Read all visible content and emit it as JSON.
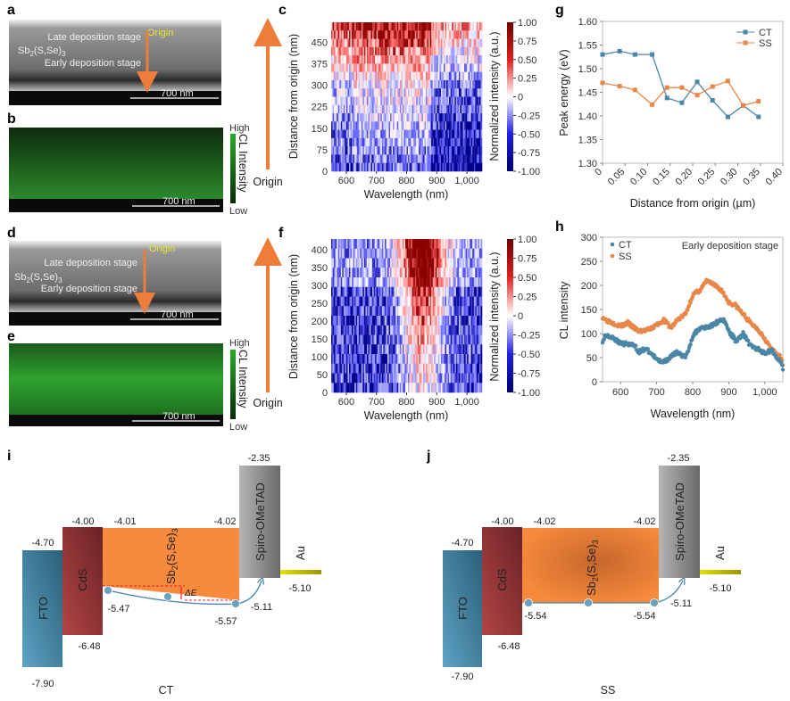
{
  "panels": {
    "a": {
      "label": "a",
      "late": "Late deposition stage",
      "mat": [
        "Sb",
        "2",
        "(S,Se)",
        "3"
      ],
      "early": "Early deposition stage",
      "origin": "Origin",
      "scale": "700 nm"
    },
    "b": {
      "label": "b",
      "scale": "700 nm",
      "high": "High",
      "low": "Low",
      "cbar_title": "CL Intensity"
    },
    "c": {
      "label": "c",
      "ylabel": "Distance from origin (nm)",
      "xlabel": "Wavelength (nm)",
      "origin": "Origin",
      "cbar_title": "Normalized intensity (a.u.)",
      "xticks": [
        "600",
        "700",
        "800",
        "900",
        "1,000"
      ],
      "yticks": [
        "0",
        "75",
        "150",
        "225",
        "300",
        "375",
        "450"
      ],
      "cbar_ticks": [
        "1.00",
        "0.75",
        "0.50",
        "0.25",
        "0",
        "-0.25",
        "-0.50",
        "-0.75",
        "-1.00"
      ]
    },
    "d": {
      "label": "d",
      "late": "Late deposition stage",
      "mat": [
        "Sb",
        "2",
        "(S,Se)",
        "3"
      ],
      "early": "Early deposition stage",
      "origin": "Origin",
      "scale": "700 nm"
    },
    "e": {
      "label": "e",
      "scale": "700 nm",
      "high": "High",
      "low": "Low",
      "cbar_title": "CL Intensity"
    },
    "f": {
      "label": "f",
      "ylabel": "Distance from origin (nm)",
      "xlabel": "Wavelength (nm)",
      "origin": "Origin",
      "cbar_title": "Normalized intensity (a.u.)",
      "xticks": [
        "600",
        "700",
        "800",
        "900",
        "1,000"
      ],
      "yticks": [
        "0",
        "50",
        "100",
        "150",
        "200",
        "250",
        "300",
        "350",
        "400"
      ],
      "cbar_ticks": [
        "1.00",
        "0.75",
        "0.50",
        "0.25",
        "0",
        "-0.25",
        "-0.50",
        "-0.75",
        "-1.00"
      ]
    },
    "i": {
      "label": "i",
      "caption": "CT",
      "fto": "FTO",
      "cds": "CdS",
      "spiro": "Spiro-OMeTAD",
      "au": "Au",
      "mat": [
        "Sb",
        "2",
        "(S,Se)",
        "3"
      ],
      "de": "ΔE",
      "levels": {
        "spiro_lumo": "-2.35",
        "cds_cb": "-4.00",
        "sb_cb_left": "-4.01",
        "sb_cb_right": "-4.02",
        "fto": "-4.70",
        "cds_vb": "-6.48",
        "fto_vb": "-7.90",
        "sb_vb_left": "-5.47",
        "sb_vb_right": "-5.57",
        "spiro_homo": "-5.11",
        "au": "-5.10"
      }
    },
    "j": {
      "label": "j",
      "caption": "SS",
      "fto": "FTO",
      "cds": "CdS",
      "spiro": "Spiro-OMeTAD",
      "au": "Au",
      "mat": [
        "Sb",
        "2",
        "(S,Se)",
        "3"
      ],
      "levels": {
        "spiro_lumo": "-2.35",
        "cds_cb": "-4.00",
        "sb_cb_left": "-4.02",
        "sb_cb_right": "-4.02",
        "fto": "-4.70",
        "cds_vb": "-6.48",
        "fto_vb": "-7.90",
        "sb_vb_left": "-5.54",
        "sb_vb_right": "-5.54",
        "spiro_homo": "-5.11",
        "au": "-5.10"
      }
    }
  },
  "colors": {
    "ct": "#4a86a6",
    "ss": "#e8874a",
    "arrow": "#ef7d3a",
    "origin": "#e8e832"
  },
  "chart_data": [
    {
      "id": "g",
      "label": "g",
      "type": "line",
      "xlabel": "Distance from origin (µm)",
      "ylabel": "Peak energy (eV)",
      "xlim": [
        0,
        0.4
      ],
      "ylim": [
        1.3,
        1.6
      ],
      "legend": "top-right",
      "xticks": [
        "0",
        "0.05",
        "0.10",
        "0.15",
        "0.20",
        "0.25",
        "0.30",
        "0.35",
        "0.40"
      ],
      "yticks": [
        "1.30",
        "1.35",
        "1.40",
        "1.45",
        "1.50",
        "1.55",
        "1.60"
      ],
      "x": [
        0,
        0.038,
        0.072,
        0.11,
        0.143,
        0.176,
        0.21,
        0.244,
        0.278,
        0.312,
        0.346
      ],
      "series": [
        {
          "name": "CT",
          "values": [
            1.53,
            1.537,
            1.53,
            1.53,
            1.438,
            1.428,
            1.472,
            1.433,
            1.398,
            1.422,
            1.398
          ]
        },
        {
          "name": "SS",
          "values": [
            1.47,
            1.463,
            1.455,
            1.424,
            1.46,
            1.46,
            1.444,
            1.462,
            1.474,
            1.422,
            1.431
          ]
        }
      ]
    },
    {
      "id": "h",
      "label": "h",
      "type": "scatter",
      "xlabel": "Wavelength (nm)",
      "ylabel": "CL intensity",
      "annotation": "Early deposition stage",
      "xlim": [
        550,
        1050
      ],
      "ylim": [
        0,
        300
      ],
      "legend": "top-left",
      "xticks": [
        "600",
        "700",
        "800",
        "900",
        "1,000"
      ],
      "yticks": [
        "0",
        "50",
        "100",
        "150",
        "200",
        "250",
        "300"
      ],
      "series": [
        {
          "name": "CT",
          "x": [
            550,
            560,
            580,
            600,
            620,
            640,
            650,
            670,
            690,
            700,
            720,
            740,
            760,
            780,
            800,
            820,
            850,
            880,
            890,
            900,
            920,
            940,
            960,
            1000,
            1020,
            1040,
            1050
          ],
          "values": [
            85,
            98,
            90,
            80,
            78,
            74,
            62,
            68,
            55,
            45,
            42,
            52,
            62,
            48,
            95,
            112,
            115,
            130,
            125,
            105,
            85,
            100,
            75,
            60,
            65,
            45,
            28
          ]
        },
        {
          "name": "SS",
          "x": [
            550,
            560,
            580,
            600,
            620,
            640,
            650,
            680,
            700,
            720,
            740,
            760,
            780,
            800,
            820,
            840,
            860,
            880,
            900,
            920,
            940,
            960,
            980,
            1000,
            1020,
            1040,
            1050
          ],
          "values": [
            135,
            128,
            122,
            115,
            122,
            110,
            105,
            108,
            118,
            128,
            112,
            130,
            140,
            180,
            190,
            210,
            200,
            190,
            165,
            158,
            140,
            122,
            110,
            90,
            65,
            55,
            38
          ]
        }
      ]
    }
  ]
}
